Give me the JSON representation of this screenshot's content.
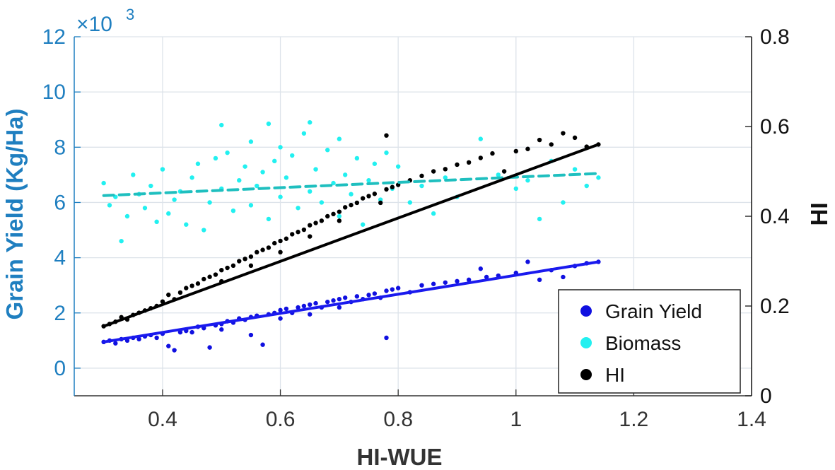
{
  "chart_data": {
    "type": "scatter",
    "xlabel": "HI-WUE",
    "ylabel_left": "Grain Yield (Kg/Ha)",
    "ylabel_right": "HI",
    "y_left_multiplier": "×10",
    "y_left_exponent": "3",
    "xlim": [
      0.25,
      1.4
    ],
    "ylim_left": [
      -1,
      12
    ],
    "ylim_right": [
      0,
      0.8
    ],
    "x_ticks": [
      0.4,
      0.6,
      0.8,
      1,
      1.2,
      1.4
    ],
    "x_tick_labels": [
      "0.4",
      "0.6",
      "0.8",
      "1",
      "1.2",
      "1.4"
    ],
    "y_left_ticks": [
      0,
      2,
      4,
      6,
      8,
      10,
      12
    ],
    "y_left_tick_labels": [
      "0",
      "2",
      "4",
      "6",
      "8",
      "10",
      "12"
    ],
    "y_right_ticks": [
      0,
      0.2,
      0.4,
      0.6,
      0.8
    ],
    "y_right_tick_labels": [
      "0",
      "0.2",
      "0.4",
      "0.6",
      "0.8"
    ],
    "grid": true,
    "legend_position": "bottom-right",
    "series": [
      {
        "name": "Grain Yield",
        "axis": "left",
        "color": "#1010e0",
        "fit": {
          "x": [
            0.3,
            1.14
          ],
          "y": [
            0.95,
            3.85
          ],
          "style": "solid",
          "color": "#1a1aee"
        },
        "points": [
          [
            0.3,
            0.95
          ],
          [
            0.31,
            1.0
          ],
          [
            0.32,
            0.9
          ],
          [
            0.33,
            1.05
          ],
          [
            0.34,
            1.0
          ],
          [
            0.35,
            1.1
          ],
          [
            0.36,
            1.05
          ],
          [
            0.37,
            1.15
          ],
          [
            0.38,
            1.2
          ],
          [
            0.39,
            1.1
          ],
          [
            0.4,
            1.25
          ],
          [
            0.41,
            0.8
          ],
          [
            0.42,
            0.65
          ],
          [
            0.43,
            1.3
          ],
          [
            0.44,
            1.35
          ],
          [
            0.45,
            1.3
          ],
          [
            0.46,
            1.5
          ],
          [
            0.47,
            1.45
          ],
          [
            0.48,
            0.75
          ],
          [
            0.49,
            1.55
          ],
          [
            0.5,
            1.6
          ],
          [
            0.5,
            1.4
          ],
          [
            0.51,
            1.7
          ],
          [
            0.52,
            1.65
          ],
          [
            0.53,
            1.8
          ],
          [
            0.54,
            1.75
          ],
          [
            0.55,
            1.85
          ],
          [
            0.55,
            1.2
          ],
          [
            0.56,
            1.9
          ],
          [
            0.57,
            0.85
          ],
          [
            0.58,
            1.95
          ],
          [
            0.59,
            2.0
          ],
          [
            0.6,
            2.1
          ],
          [
            0.6,
            1.8
          ],
          [
            0.61,
            2.15
          ],
          [
            0.62,
            2.0
          ],
          [
            0.63,
            2.2
          ],
          [
            0.64,
            2.25
          ],
          [
            0.65,
            2.3
          ],
          [
            0.65,
            1.95
          ],
          [
            0.66,
            2.35
          ],
          [
            0.67,
            2.2
          ],
          [
            0.68,
            2.4
          ],
          [
            0.69,
            2.45
          ],
          [
            0.7,
            2.5
          ],
          [
            0.7,
            2.2
          ],
          [
            0.71,
            2.55
          ],
          [
            0.72,
            2.4
          ],
          [
            0.73,
            2.6
          ],
          [
            0.74,
            2.5
          ],
          [
            0.75,
            2.65
          ],
          [
            0.76,
            2.7
          ],
          [
            0.77,
            2.55
          ],
          [
            0.78,
            2.8
          ],
          [
            0.78,
            1.1
          ],
          [
            0.79,
            2.85
          ],
          [
            0.8,
            2.9
          ],
          [
            0.82,
            2.75
          ],
          [
            0.84,
            3.0
          ],
          [
            0.86,
            3.05
          ],
          [
            0.88,
            3.1
          ],
          [
            0.9,
            3.15
          ],
          [
            0.92,
            3.2
          ],
          [
            0.94,
            3.6
          ],
          [
            0.95,
            3.3
          ],
          [
            0.97,
            3.35
          ],
          [
            1.0,
            3.45
          ],
          [
            1.02,
            3.85
          ],
          [
            1.04,
            3.2
          ],
          [
            1.06,
            3.55
          ],
          [
            1.08,
            3.3
          ],
          [
            1.1,
            3.7
          ],
          [
            1.12,
            3.8
          ],
          [
            1.14,
            3.85
          ]
        ]
      },
      {
        "name": "Biomass",
        "axis": "left",
        "color": "#22f0f0",
        "fit": {
          "x": [
            0.3,
            1.14
          ],
          "y": [
            6.25,
            7.05
          ],
          "style": "dashed",
          "color": "#1fbfbf"
        },
        "points": [
          [
            0.3,
            6.7
          ],
          [
            0.31,
            5.9
          ],
          [
            0.32,
            6.2
          ],
          [
            0.33,
            4.6
          ],
          [
            0.34,
            5.5
          ],
          [
            0.35,
            7.0
          ],
          [
            0.36,
            6.3
          ],
          [
            0.37,
            5.8
          ],
          [
            0.38,
            6.6
          ],
          [
            0.39,
            5.3
          ],
          [
            0.4,
            7.2
          ],
          [
            0.41,
            5.6
          ],
          [
            0.42,
            6.1
          ],
          [
            0.43,
            6.4
          ],
          [
            0.44,
            5.2
          ],
          [
            0.45,
            6.9
          ],
          [
            0.46,
            7.4
          ],
          [
            0.47,
            5.0
          ],
          [
            0.48,
            6.0
          ],
          [
            0.49,
            7.6
          ],
          [
            0.5,
            8.8
          ],
          [
            0.5,
            6.5
          ],
          [
            0.51,
            7.8
          ],
          [
            0.52,
            5.7
          ],
          [
            0.53,
            6.8
          ],
          [
            0.54,
            7.3
          ],
          [
            0.55,
            8.2
          ],
          [
            0.55,
            5.9
          ],
          [
            0.56,
            6.6
          ],
          [
            0.57,
            7.1
          ],
          [
            0.58,
            8.85
          ],
          [
            0.58,
            5.4
          ],
          [
            0.59,
            7.5
          ],
          [
            0.6,
            6.2
          ],
          [
            0.6,
            8.0
          ],
          [
            0.61,
            6.9
          ],
          [
            0.62,
            7.7
          ],
          [
            0.63,
            5.8
          ],
          [
            0.64,
            8.5
          ],
          [
            0.65,
            8.9
          ],
          [
            0.65,
            6.4
          ],
          [
            0.66,
            7.2
          ],
          [
            0.67,
            6.0
          ],
          [
            0.68,
            7.9
          ],
          [
            0.69,
            6.7
          ],
          [
            0.7,
            8.3
          ],
          [
            0.7,
            5.5
          ],
          [
            0.71,
            7.0
          ],
          [
            0.72,
            6.3
          ],
          [
            0.73,
            7.6
          ],
          [
            0.74,
            5.2
          ],
          [
            0.75,
            6.8
          ],
          [
            0.76,
            7.4
          ],
          [
            0.77,
            6.1
          ],
          [
            0.78,
            7.8
          ],
          [
            0.79,
            6.5
          ],
          [
            0.8,
            7.3
          ],
          [
            0.82,
            6.0
          ],
          [
            0.84,
            6.6
          ],
          [
            0.86,
            5.6
          ],
          [
            0.88,
            6.9
          ],
          [
            0.9,
            6.2
          ],
          [
            0.94,
            8.3
          ],
          [
            0.97,
            7.0
          ],
          [
            1.0,
            6.5
          ],
          [
            1.02,
            6.8
          ],
          [
            1.04,
            5.4
          ],
          [
            1.06,
            7.5
          ],
          [
            1.08,
            6.0
          ],
          [
            1.1,
            7.2
          ],
          [
            1.12,
            6.6
          ],
          [
            1.14,
            6.9
          ]
        ]
      },
      {
        "name": "HI",
        "axis": "right",
        "color": "#000000",
        "fit": {
          "x": [
            0.3,
            1.14
          ],
          "y": [
            0.155,
            0.56
          ],
          "style": "solid",
          "color": "#000000"
        },
        "points": [
          [
            0.3,
            0.155
          ],
          [
            0.31,
            0.16
          ],
          [
            0.32,
            0.165
          ],
          [
            0.33,
            0.175
          ],
          [
            0.34,
            0.17
          ],
          [
            0.35,
            0.18
          ],
          [
            0.36,
            0.185
          ],
          [
            0.37,
            0.19
          ],
          [
            0.38,
            0.195
          ],
          [
            0.39,
            0.2
          ],
          [
            0.4,
            0.21
          ],
          [
            0.41,
            0.225
          ],
          [
            0.42,
            0.215
          ],
          [
            0.43,
            0.23
          ],
          [
            0.44,
            0.24
          ],
          [
            0.45,
            0.245
          ],
          [
            0.46,
            0.25
          ],
          [
            0.47,
            0.26
          ],
          [
            0.48,
            0.265
          ],
          [
            0.49,
            0.27
          ],
          [
            0.5,
            0.28
          ],
          [
            0.5,
            0.255
          ],
          [
            0.51,
            0.285
          ],
          [
            0.52,
            0.29
          ],
          [
            0.53,
            0.3
          ],
          [
            0.54,
            0.305
          ],
          [
            0.55,
            0.31
          ],
          [
            0.55,
            0.29
          ],
          [
            0.56,
            0.32
          ],
          [
            0.57,
            0.325
          ],
          [
            0.58,
            0.33
          ],
          [
            0.59,
            0.34
          ],
          [
            0.6,
            0.345
          ],
          [
            0.6,
            0.32
          ],
          [
            0.61,
            0.35
          ],
          [
            0.62,
            0.36
          ],
          [
            0.63,
            0.365
          ],
          [
            0.64,
            0.37
          ],
          [
            0.65,
            0.38
          ],
          [
            0.65,
            0.355
          ],
          [
            0.66,
            0.385
          ],
          [
            0.67,
            0.39
          ],
          [
            0.68,
            0.4
          ],
          [
            0.69,
            0.405
          ],
          [
            0.7,
            0.41
          ],
          [
            0.7,
            0.39
          ],
          [
            0.71,
            0.42
          ],
          [
            0.72,
            0.425
          ],
          [
            0.73,
            0.43
          ],
          [
            0.74,
            0.44
          ],
          [
            0.75,
            0.445
          ],
          [
            0.76,
            0.45
          ],
          [
            0.77,
            0.43
          ],
          [
            0.78,
            0.46
          ],
          [
            0.78,
            0.58
          ],
          [
            0.79,
            0.465
          ],
          [
            0.8,
            0.47
          ],
          [
            0.82,
            0.48
          ],
          [
            0.84,
            0.49
          ],
          [
            0.86,
            0.5
          ],
          [
            0.88,
            0.505
          ],
          [
            0.9,
            0.515
          ],
          [
            0.92,
            0.52
          ],
          [
            0.94,
            0.53
          ],
          [
            0.96,
            0.54
          ],
          [
            0.98,
            0.5
          ],
          [
            1.0,
            0.545
          ],
          [
            1.02,
            0.55
          ],
          [
            1.04,
            0.57
          ],
          [
            1.06,
            0.56
          ],
          [
            1.08,
            0.585
          ],
          [
            1.1,
            0.575
          ],
          [
            1.12,
            0.555
          ],
          [
            1.14,
            0.56
          ]
        ]
      }
    ]
  }
}
